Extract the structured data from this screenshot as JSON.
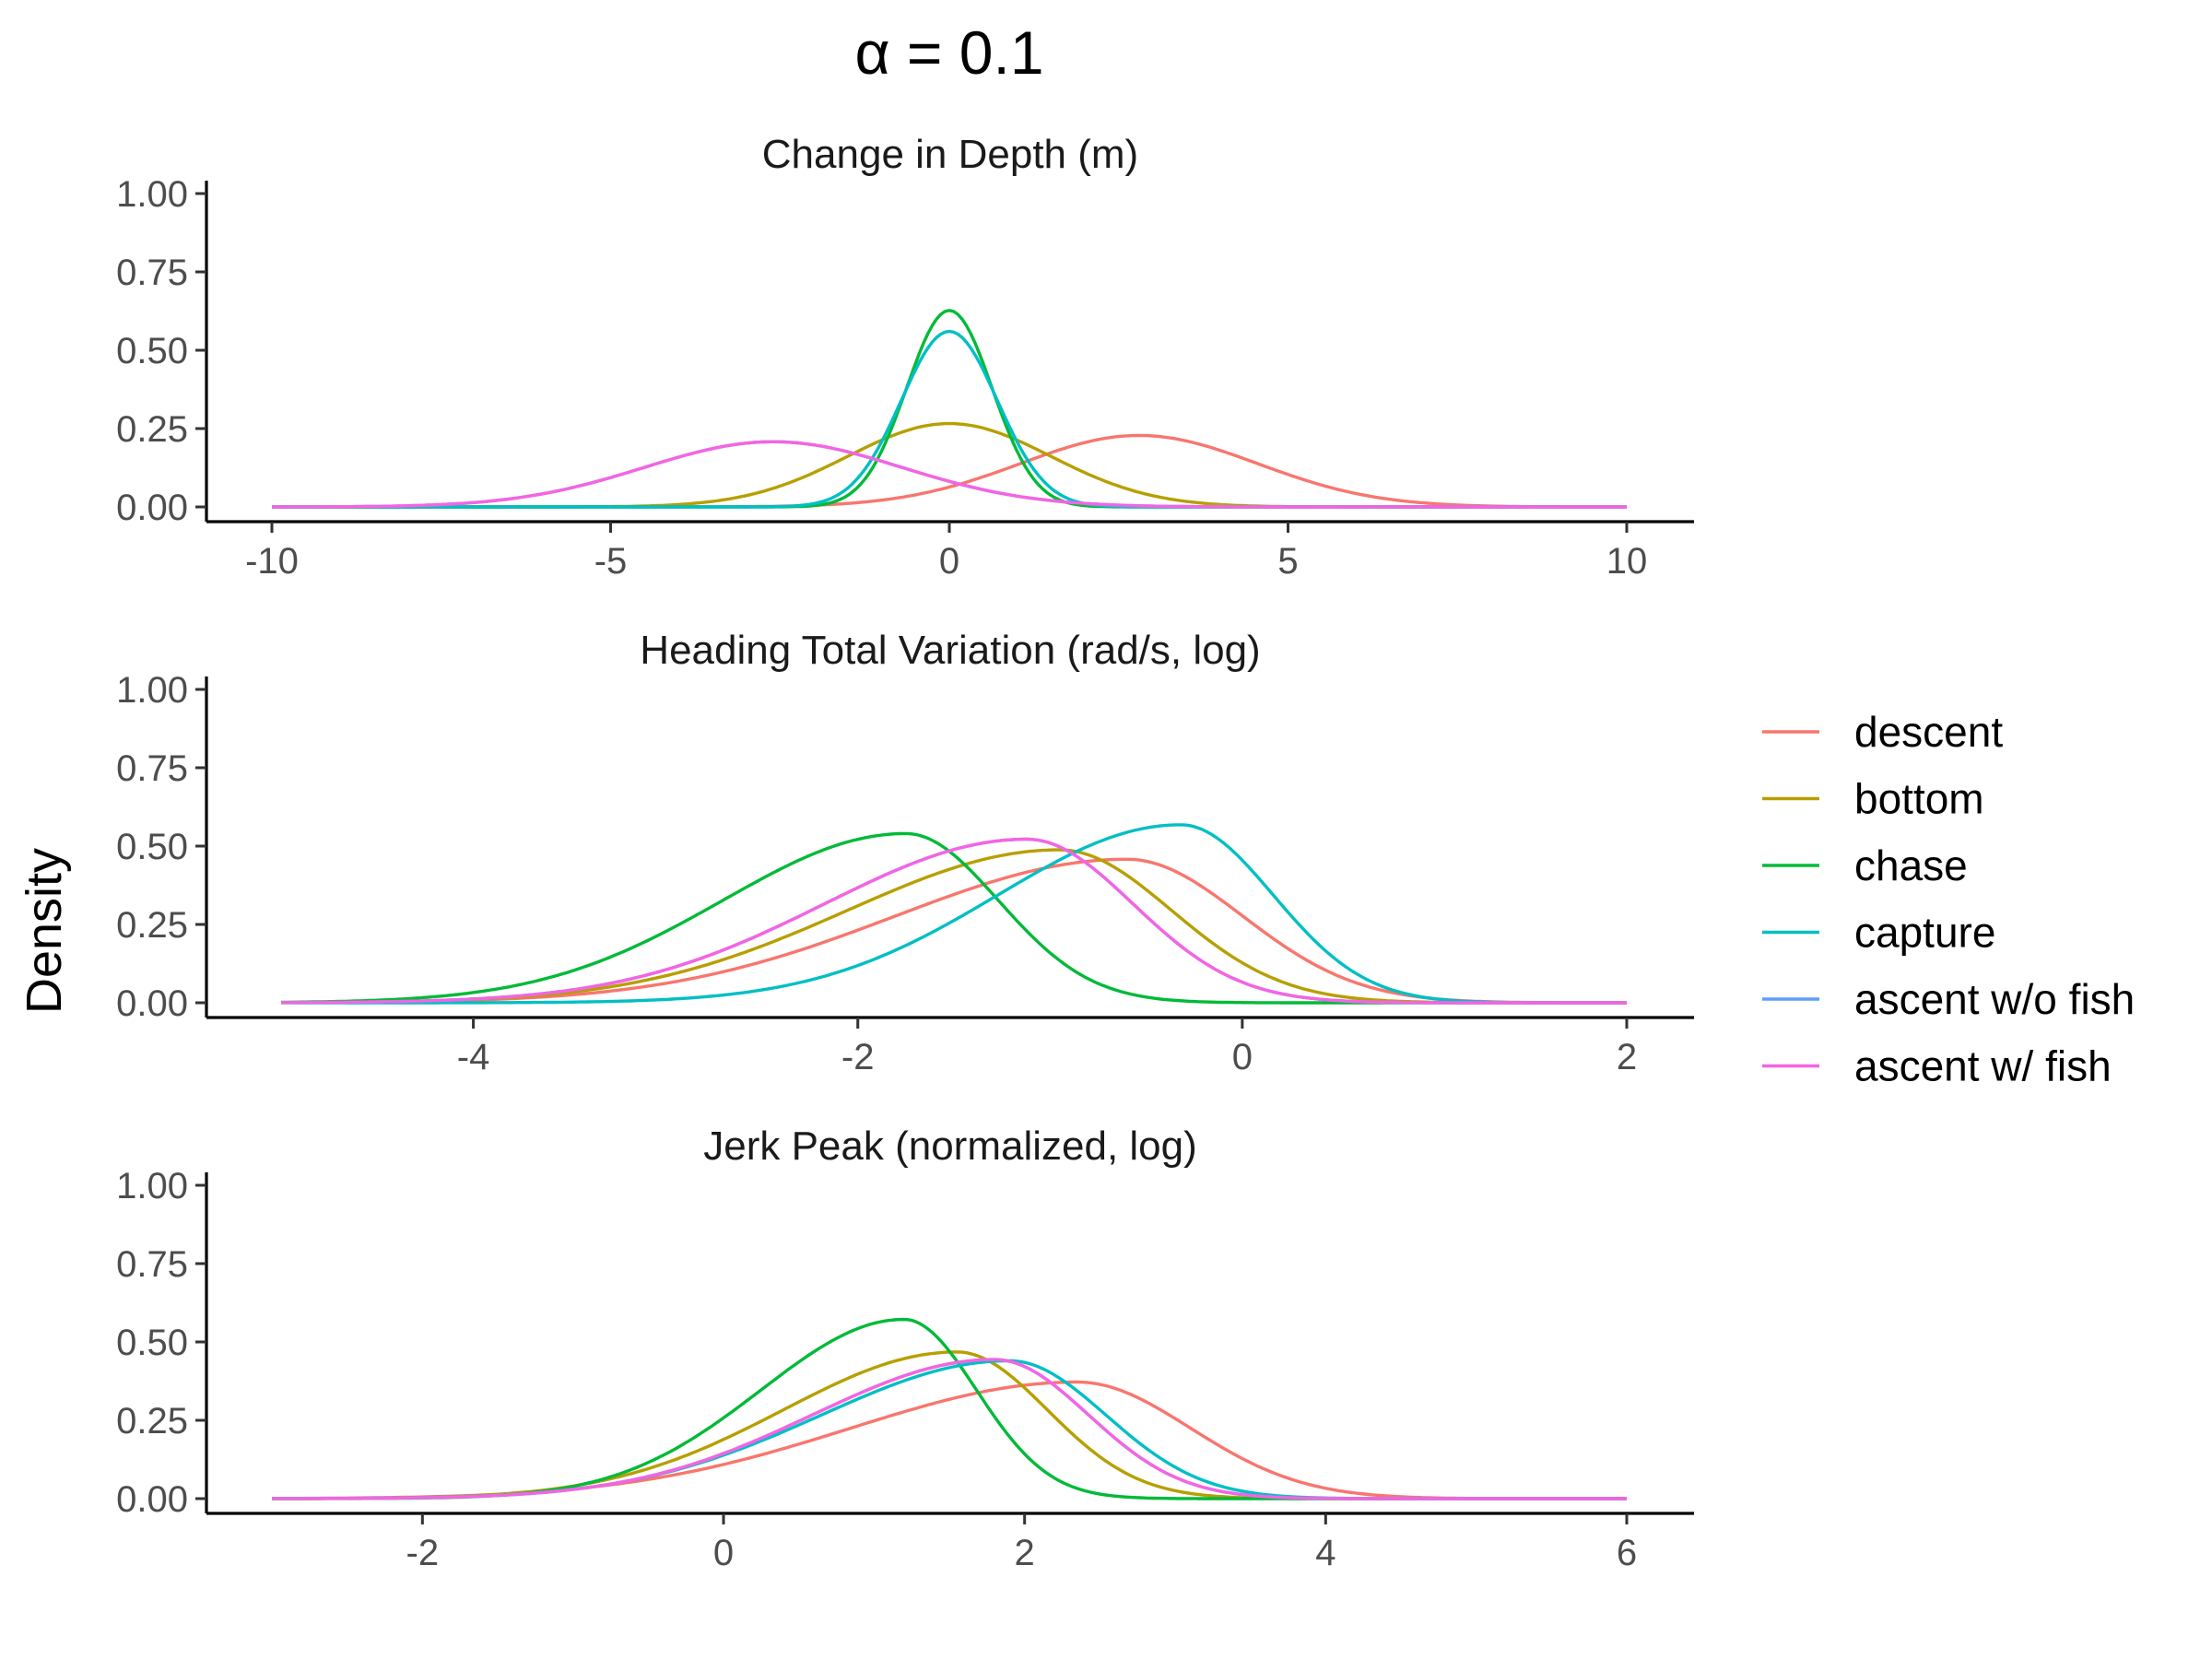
{
  "figure": {
    "title": "α = 0.1",
    "ylabel": "Density"
  },
  "colors": {
    "descent": "#F8766D",
    "bottom": "#B79F00",
    "chase": "#00BA38",
    "capture": "#00BFC4",
    "ascent w/o fish": "#619CFF",
    "ascent w/ fish": "#F564E3"
  },
  "legend": {
    "items": [
      "descent",
      "bottom",
      "chase",
      "capture",
      "ascent w/o fish",
      "ascent w/ fish"
    ]
  },
  "chart_data": [
    {
      "type": "line",
      "title": "Change in Depth (m)",
      "xlabel": "",
      "ylabel": "Density",
      "xlim": [
        -10,
        10
      ],
      "ylim": [
        0,
        1
      ],
      "xticks": [
        -10,
        -5,
        0,
        5,
        10
      ],
      "xtick_labels": [
        "-10",
        "-5",
        "0",
        "5",
        "10"
      ],
      "yticks": [
        0,
        0.25,
        0.5,
        0.75,
        1
      ],
      "ytick_labels": [
        "0.00",
        "0.25",
        "0.50",
        "0.75",
        "1.00"
      ],
      "curve": "normal",
      "series": [
        {
          "name": "descent",
          "mean": 2.8,
          "sd": 1.75,
          "peak": 0.228
        },
        {
          "name": "bottom",
          "mean": 0.0,
          "sd": 1.5,
          "peak": 0.266
        },
        {
          "name": "chase",
          "mean": 0.0,
          "sd": 0.63,
          "peak": 0.627
        },
        {
          "name": "capture",
          "mean": 0.0,
          "sd": 0.71,
          "peak": 0.56
        },
        {
          "name": "ascent w/o fish",
          "mean": -2.6,
          "sd": 1.9,
          "peak": 0.208
        },
        {
          "name": "ascent w/ fish",
          "mean": -2.6,
          "sd": 1.9,
          "peak": 0.208
        }
      ]
    },
    {
      "type": "line",
      "title": "Heading Total Variation (rad/s, log)",
      "xlabel": "",
      "ylabel": "Density",
      "xlim": [
        -5,
        2
      ],
      "ylim": [
        0,
        1
      ],
      "xticks": [
        -4,
        -2,
        0,
        2
      ],
      "xtick_labels": [
        "-4",
        "-2",
        "0",
        "2"
      ],
      "yticks": [
        0,
        0.25,
        0.5,
        0.75,
        1
      ],
      "ytick_labels": [
        "0.00",
        "0.25",
        "0.50",
        "0.75",
        "1.00"
      ],
      "curve": "skew-normal",
      "series": [
        {
          "name": "descent",
          "mode": -0.6,
          "peak": 0.458,
          "sd_left": 1.2,
          "sd_right": 0.6
        },
        {
          "name": "bottom",
          "mode": -0.95,
          "peak": 0.488,
          "sd_left": 1.1,
          "sd_right": 0.58
        },
        {
          "name": "chase",
          "mode": -1.75,
          "peak": 0.54,
          "sd_left": 0.95,
          "sd_right": 0.48
        },
        {
          "name": "capture",
          "mode": -0.32,
          "peak": 0.568,
          "sd_left": 0.95,
          "sd_right": 0.48
        },
        {
          "name": "ascent w/o fish",
          "mode": -1.12,
          "peak": 0.522,
          "sd_left": 1.05,
          "sd_right": 0.55
        },
        {
          "name": "ascent w/ fish",
          "mode": -1.12,
          "peak": 0.522,
          "sd_left": 1.05,
          "sd_right": 0.55
        }
      ]
    },
    {
      "type": "line",
      "title": "Jerk Peak (normalized, log)",
      "xlabel": "",
      "ylabel": "Density",
      "xlim": [
        -3,
        6
      ],
      "ylim": [
        0,
        1
      ],
      "xticks": [
        -2,
        0,
        2,
        4,
        6
      ],
      "xtick_labels": [
        "-2",
        "0",
        "2",
        "4",
        "6"
      ],
      "yticks": [
        0,
        0.25,
        0.5,
        0.75,
        1
      ],
      "ytick_labels": [
        "0.00",
        "0.25",
        "0.50",
        "0.75",
        "1.00"
      ],
      "curve": "skew-normal",
      "series": [
        {
          "name": "descent",
          "mode": 2.35,
          "peak": 0.372,
          "sd_left": 1.5,
          "sd_right": 0.75
        },
        {
          "name": "bottom",
          "mode": 1.55,
          "peak": 0.468,
          "sd_left": 1.15,
          "sd_right": 0.6
        },
        {
          "name": "chase",
          "mode": 1.2,
          "peak": 0.572,
          "sd_left": 0.95,
          "sd_right": 0.48
        },
        {
          "name": "capture",
          "mode": 1.9,
          "peak": 0.44,
          "sd_left": 1.25,
          "sd_right": 0.64
        },
        {
          "name": "ascent w/o fish",
          "mode": 1.8,
          "peak": 0.444,
          "sd_left": 1.2,
          "sd_right": 0.62
        },
        {
          "name": "ascent w/ fish",
          "mode": 1.8,
          "peak": 0.444,
          "sd_left": 1.2,
          "sd_right": 0.62
        }
      ]
    }
  ]
}
